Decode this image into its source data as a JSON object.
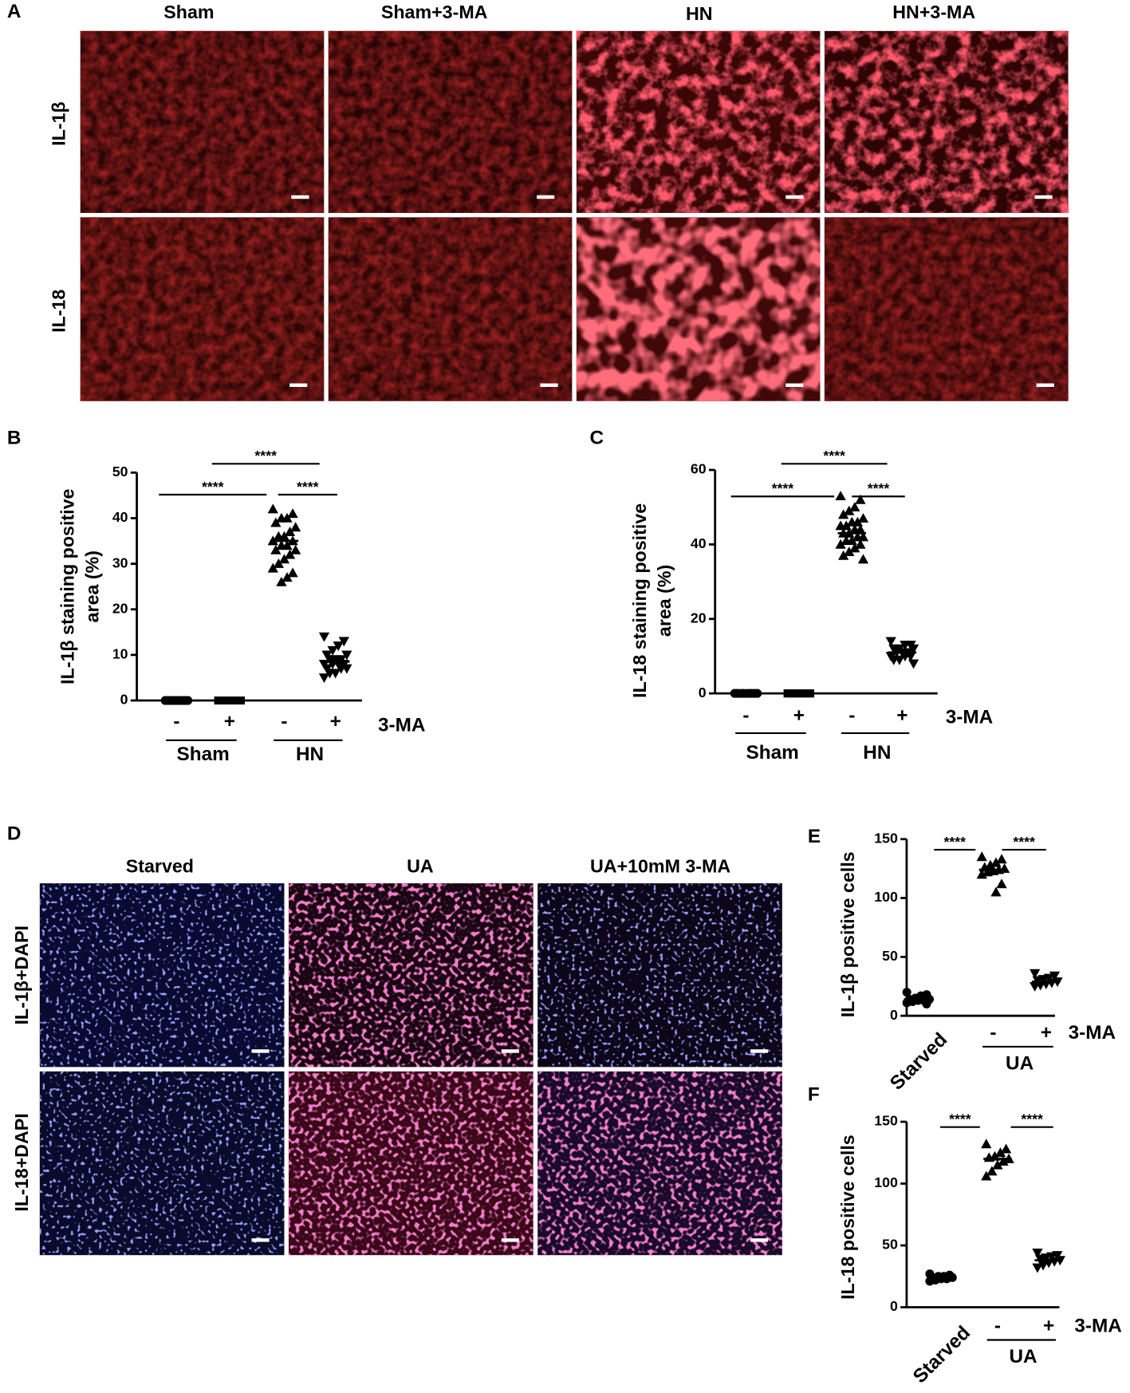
{
  "panel_a": {
    "label": "A",
    "columns": [
      "Sham",
      "Sham+3-MA",
      "HN",
      "HN+3-MA"
    ],
    "rows": [
      "IL-1β",
      "IL-18"
    ]
  },
  "panel_d": {
    "label": "D",
    "columns": [
      "Starved",
      "UA",
      "UA+10mM 3-MA"
    ],
    "rows": [
      "IL-1β+DAPI",
      "IL-18+DAPI"
    ]
  },
  "chart_data": [
    {
      "type": "scatter",
      "panel": "B",
      "ylabel": [
        "IL-1β staining positive",
        "area (%)"
      ],
      "ylim": [
        0,
        50
      ],
      "yticks": [
        0,
        10,
        20,
        30,
        40,
        50
      ],
      "categories": [
        "-",
        "+",
        "-",
        "+"
      ],
      "groups": [
        "Sham",
        "HN"
      ],
      "treatment": "3-MA",
      "significance": [
        "****",
        "****",
        "****"
      ],
      "series": [
        {
          "marker": "circle",
          "color": "#000000",
          "values": [
            0,
            0,
            0,
            0,
            0,
            0,
            0,
            0,
            0,
            0,
            0,
            0,
            0,
            0,
            0,
            0,
            0,
            0
          ],
          "mean": 0
        },
        {
          "marker": "square",
          "color": "#000000",
          "values": [
            0,
            0,
            0,
            0,
            0,
            0,
            0,
            0,
            0,
            0,
            0,
            0,
            0,
            0,
            0
          ],
          "mean": 0
        },
        {
          "marker": "triangle-up",
          "color": "#000000",
          "values": [
            42,
            41,
            40,
            40,
            39,
            38,
            37,
            36,
            36,
            35,
            35,
            34,
            34,
            33,
            33,
            32,
            31,
            30,
            29,
            28,
            27,
            26
          ],
          "mean": 35
        },
        {
          "marker": "triangle-down",
          "color": "#000000",
          "values": [
            14,
            13,
            12,
            11,
            10,
            10,
            9,
            9,
            9,
            8,
            8,
            8,
            8,
            7,
            7,
            7,
            6,
            6,
            5
          ],
          "mean": 8.5
        }
      ]
    },
    {
      "type": "scatter",
      "panel": "C",
      "ylabel": [
        "IL-18 staining positive",
        "area (%)"
      ],
      "ylim": [
        0,
        60
      ],
      "yticks": [
        0,
        20,
        40,
        60
      ],
      "categories": [
        "-",
        "+",
        "-",
        "+"
      ],
      "groups": [
        "Sham",
        "HN"
      ],
      "treatment": "3-MA",
      "significance": [
        "****",
        "****",
        "****"
      ],
      "series": [
        {
          "marker": "circle",
          "color": "#000000",
          "values": [
            0,
            0,
            0,
            0,
            0,
            0,
            0,
            0,
            0,
            0,
            0,
            0,
            0,
            0,
            0,
            0
          ],
          "mean": 0
        },
        {
          "marker": "square",
          "color": "#000000",
          "values": [
            0,
            0,
            0,
            0,
            0,
            0,
            0,
            0,
            0,
            0,
            0,
            0,
            0,
            0,
            0
          ],
          "mean": 0
        },
        {
          "marker": "triangle-up",
          "color": "#000000",
          "values": [
            53,
            52,
            50,
            49,
            48,
            47,
            46,
            46,
            45,
            45,
            44,
            44,
            43,
            43,
            42,
            42,
            41,
            41,
            40,
            40,
            39,
            38,
            37,
            36
          ],
          "mean": 43
        },
        {
          "marker": "triangle-down",
          "color": "#000000",
          "values": [
            14,
            13,
            13,
            12,
            12,
            12,
            11,
            11,
            11,
            10,
            10,
            10,
            9,
            9,
            8
          ],
          "mean": 11
        }
      ]
    },
    {
      "type": "scatter",
      "panel": "E",
      "ylabel": [
        "IL-1β positive cells"
      ],
      "ylim": [
        0,
        150
      ],
      "yticks": [
        0,
        50,
        100,
        150
      ],
      "categories": [
        "Starved",
        "-",
        "+"
      ],
      "groups": [
        "UA"
      ],
      "treatment": "3-MA",
      "significance": [
        "****",
        "****"
      ],
      "series": [
        {
          "marker": "circle",
          "color": "#000000",
          "values": [
            20,
            18,
            17,
            15,
            14,
            14,
            13,
            13,
            12,
            11,
            10
          ],
          "mean": 14
        },
        {
          "marker": "triangle-up",
          "color": "#000000",
          "values": [
            135,
            133,
            130,
            128,
            126,
            125,
            124,
            123,
            122,
            120,
            112,
            105
          ],
          "mean": 124
        },
        {
          "marker": "triangle-down",
          "color": "#000000",
          "values": [
            36,
            34,
            32,
            31,
            30,
            29,
            28,
            27,
            26,
            25
          ],
          "mean": 29
        }
      ]
    },
    {
      "type": "scatter",
      "panel": "F",
      "ylabel": [
        "IL-18 positive cells"
      ],
      "ylim": [
        0,
        150
      ],
      "yticks": [
        0,
        50,
        100,
        150
      ],
      "categories": [
        "Starved",
        "-",
        "+"
      ],
      "groups": [
        "UA"
      ],
      "treatment": "3-MA",
      "significance": [
        "****",
        "****"
      ],
      "series": [
        {
          "marker": "circle",
          "color": "#000000",
          "values": [
            27,
            26,
            25,
            25,
            24,
            24,
            23,
            23,
            22,
            21
          ],
          "mean": 24
        },
        {
          "marker": "triangle-up",
          "color": "#000000",
          "values": [
            132,
            128,
            125,
            122,
            121,
            120,
            118,
            115,
            110,
            106
          ],
          "mean": 120
        },
        {
          "marker": "triangle-down",
          "color": "#000000",
          "values": [
            44,
            42,
            41,
            40,
            39,
            38,
            37,
            36,
            34,
            32
          ],
          "mean": 38
        }
      ]
    }
  ]
}
